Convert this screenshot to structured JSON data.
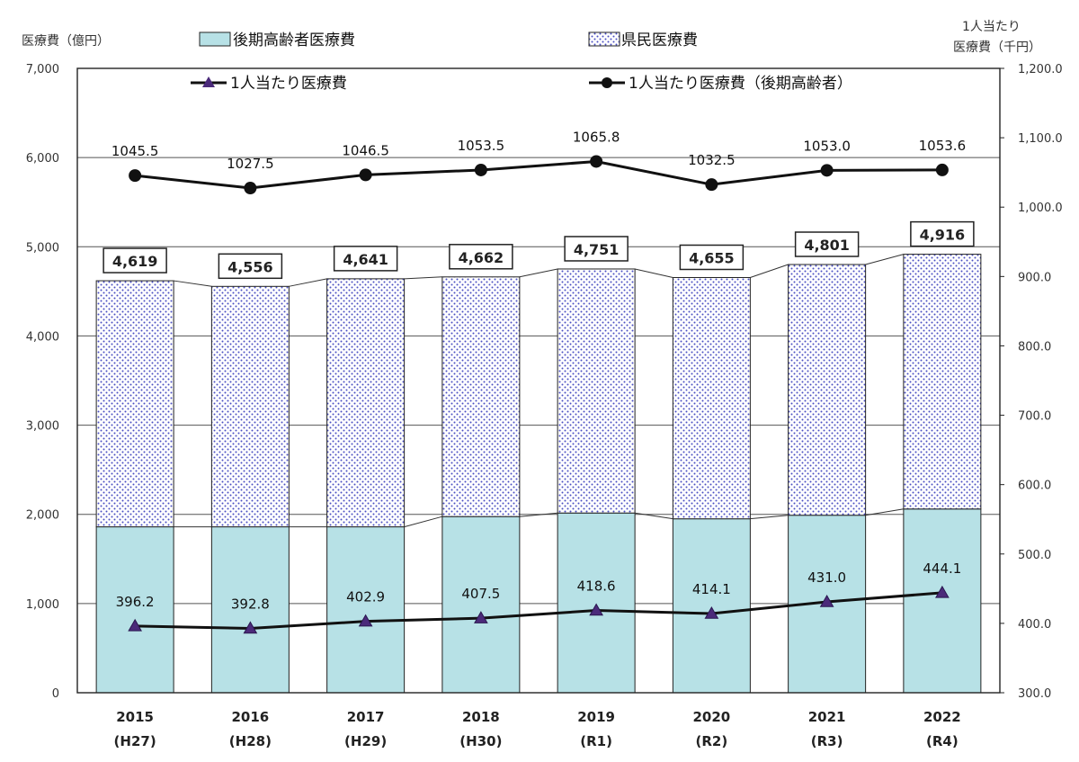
{
  "chart_data": {
    "type": "bar",
    "stacked": true,
    "categories": [
      "2015",
      "2016",
      "2017",
      "2018",
      "2019",
      "2020",
      "2021",
      "2022"
    ],
    "category_sublabels": [
      "(H27)",
      "(H28)",
      "(H29)",
      "(H30)",
      "(R1)",
      "(R2)",
      "(R3)",
      "(R4)"
    ],
    "y_left": {
      "label": "医療費（億円）",
      "range": [
        0,
        7000
      ],
      "ticks": [
        "0",
        "1,000",
        "2,000",
        "3,000",
        "4,000",
        "5,000",
        "6,000",
        "7,000"
      ]
    },
    "y_right": {
      "label_line1": "1人当たり",
      "label_line2": "医療費（千円）",
      "range": [
        300,
        1200
      ],
      "ticks": [
        "300.0",
        "400.0",
        "500.0",
        "600.0",
        "700.0",
        "800.0",
        "900.0",
        "1,000.0",
        "1,100.0",
        "1,200.0"
      ]
    },
    "grid": true,
    "bar_series": [
      {
        "name": "後期高齢者医療費",
        "values": [
          1860,
          1860,
          1860,
          1975,
          2015,
          1950,
          1990,
          2060
        ],
        "color": "#b7e1e6"
      },
      {
        "name": "県民医療費",
        "values": [
          2759,
          2696,
          2781,
          2687,
          2736,
          2705,
          2811,
          2856
        ],
        "color": "#5b5fc7",
        "pattern": "dots"
      }
    ],
    "bar_totals": [
      4619,
      4556,
      4641,
      4662,
      4751,
      4655,
      4801,
      4916
    ],
    "bar_total_labels": [
      "4,619",
      "4,556",
      "4,641",
      "4,662",
      "4,751",
      "4,655",
      "4,801",
      "4,916"
    ],
    "line_series": [
      {
        "name": "1人当たり医療費",
        "axis": "right",
        "marker": "triangle",
        "values": [
          396.2,
          392.8,
          402.9,
          407.5,
          418.6,
          414.1,
          431.0,
          444.1
        ],
        "labels": [
          "396.2",
          "392.8",
          "402.9",
          "407.5",
          "418.6",
          "414.1",
          "431.0",
          "444.1"
        ]
      },
      {
        "name": "1人当たり医療費（後期高齢者）",
        "axis": "right",
        "marker": "circle",
        "values": [
          1045.5,
          1027.5,
          1046.5,
          1053.5,
          1065.8,
          1032.5,
          1053.0,
          1053.6
        ],
        "labels": [
          "1045.5",
          "1027.5",
          "1046.5",
          "1053.5",
          "1065.8",
          "1032.5",
          "1053.0",
          "1053.6"
        ]
      }
    ],
    "legend_placement": "top"
  }
}
